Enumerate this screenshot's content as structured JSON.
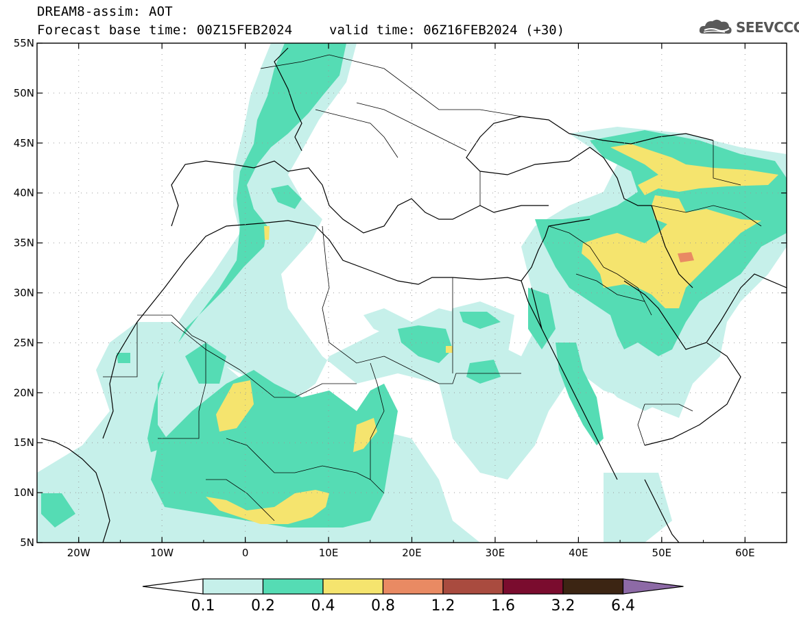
{
  "title": {
    "line1": "DREAM8-assim: AOT",
    "line2": "Forecast base time: 00Z15FEB2024",
    "valid": "valid time: 06Z16FEB2024 (+30)"
  },
  "logo": {
    "text": "SEEVCCC",
    "icon": "cloud-icon"
  },
  "map": {
    "lon_range": [
      -25,
      65
    ],
    "lat_range": [
      5,
      55
    ],
    "lon_ticks": [
      {
        "value": -20,
        "label": "20W"
      },
      {
        "value": -10,
        "label": "10W"
      },
      {
        "value": 0,
        "label": "0"
      },
      {
        "value": 10,
        "label": "10E"
      },
      {
        "value": 20,
        "label": "20E"
      },
      {
        "value": 30,
        "label": "30E"
      },
      {
        "value": 40,
        "label": "40E"
      },
      {
        "value": 50,
        "label": "50E"
      },
      {
        "value": 60,
        "label": "60E"
      }
    ],
    "lat_ticks": [
      {
        "value": 55,
        "label": "55N"
      },
      {
        "value": 50,
        "label": "50N"
      },
      {
        "value": 45,
        "label": "45N"
      },
      {
        "value": 40,
        "label": "40N"
      },
      {
        "value": 35,
        "label": "35N"
      },
      {
        "value": 30,
        "label": "30N"
      },
      {
        "value": 25,
        "label": "25N"
      },
      {
        "value": 20,
        "label": "20N"
      },
      {
        "value": 15,
        "label": "15N"
      },
      {
        "value": 10,
        "label": "10N"
      },
      {
        "value": 5,
        "label": "5N"
      }
    ],
    "grid": "dotted"
  },
  "colorbar": {
    "colors": [
      "#c6f0ea",
      "#55dcb4",
      "#f5e46e",
      "#e98a63",
      "#a94b3f",
      "#7a0c2e",
      "#3c2513",
      "#8d6aa6"
    ],
    "labels": [
      "0.1",
      "0.2",
      "0.4",
      "0.8",
      "1.2",
      "1.6",
      "3.2",
      "6.4"
    ]
  }
}
